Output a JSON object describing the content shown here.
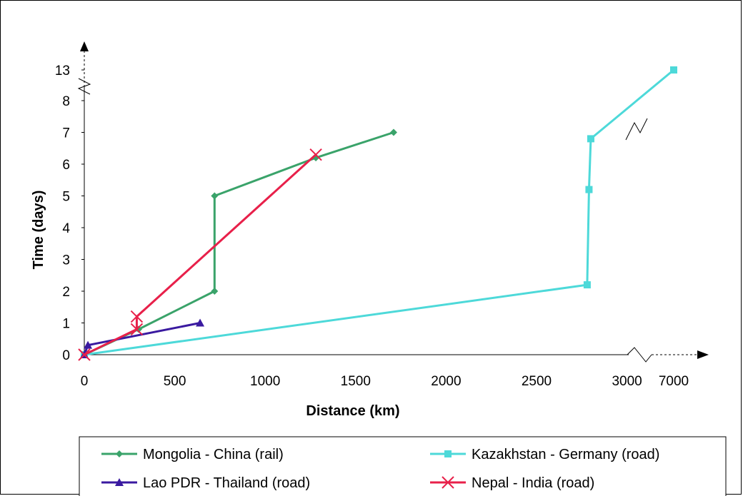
{
  "chart_data": {
    "type": "line",
    "xlabel": "Distance (km)",
    "ylabel": "Time (days)",
    "x_ticks": [
      0,
      500,
      1000,
      1500,
      2000,
      2500,
      3000,
      7000
    ],
    "y_ticks": [
      0,
      1,
      2,
      3,
      4,
      5,
      6,
      7,
      8,
      13
    ],
    "x_axis_break": "between 3000 and 7000",
    "y_axis_break": "between 8 and 13",
    "legend_position": "bottom",
    "grid": false,
    "series": [
      {
        "name": "Mongolia - China (rail)",
        "color": "#3aa36a",
        "marker": "diamond",
        "x": [
          0,
          300,
          720,
          720,
          1280,
          1710
        ],
        "y": [
          0,
          0.8,
          2,
          5,
          6.2,
          7
        ]
      },
      {
        "name": "Kazakhstan - Germany (road)",
        "color": "#4dd9d9",
        "marker": "square",
        "x": [
          0,
          2780,
          2790,
          2800,
          7000
        ],
        "y": [
          0,
          2.2,
          5.2,
          6.8,
          13
        ]
      },
      {
        "name": "Lao PDR - Thailand (road)",
        "color": "#3a1aa0",
        "marker": "triangle",
        "x": [
          0,
          20,
          640
        ],
        "y": [
          0,
          0.3,
          1
        ]
      },
      {
        "name": "Nepal - India (road)",
        "color": "#e8204a",
        "marker": "x",
        "x": [
          0,
          290,
          290,
          1280
        ],
        "y": [
          0,
          0.8,
          1.2,
          6.3
        ]
      }
    ]
  }
}
